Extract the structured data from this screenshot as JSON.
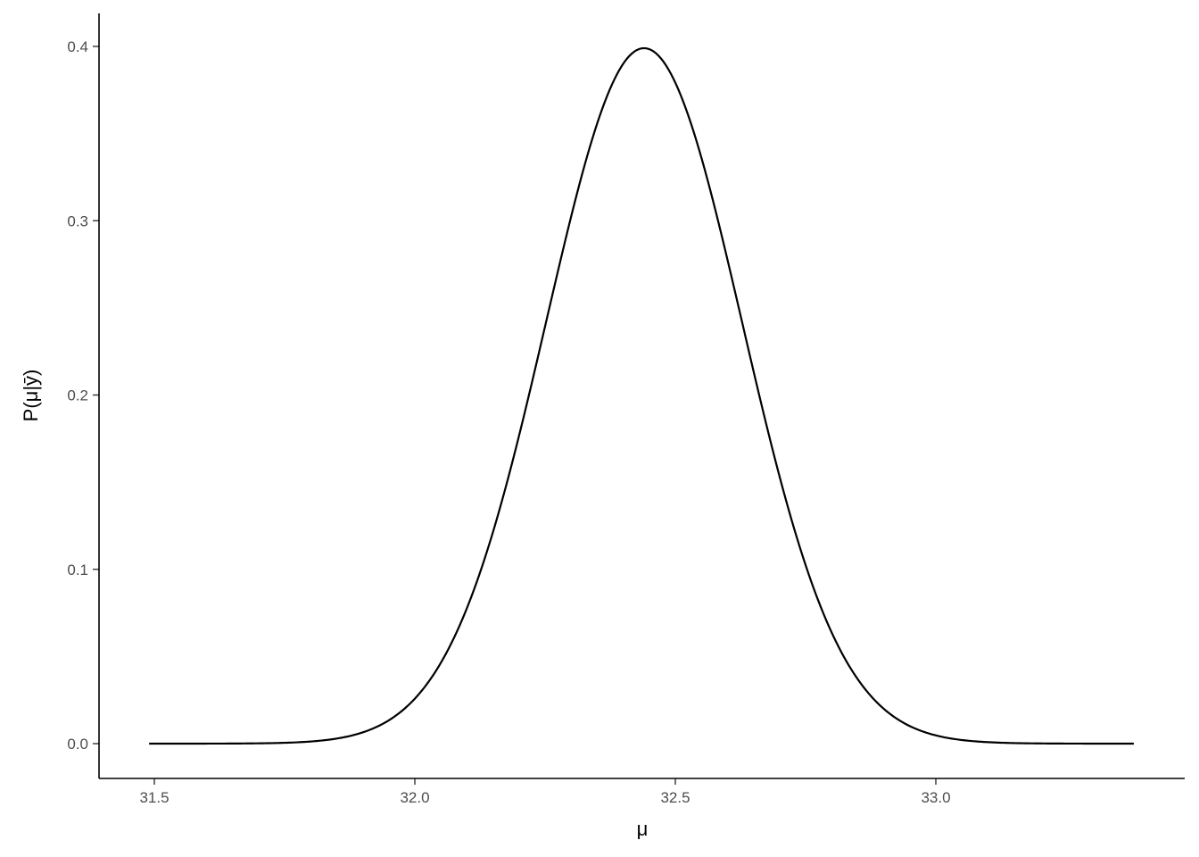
{
  "chart_data": {
    "type": "line",
    "title": "",
    "xlabel": "μ",
    "ylabel": "P(μ|ȳ)",
    "xlim": [
      31.44,
      33.43
    ],
    "ylim": [
      -0.02,
      0.42
    ],
    "x_ticks": [
      31.5,
      32.0,
      32.5,
      33.0
    ],
    "x_tick_labels": [
      "31.5",
      "32.0",
      "32.5",
      "33.0"
    ],
    "y_ticks": [
      0.0,
      0.1,
      0.2,
      0.3,
      0.4
    ],
    "y_tick_labels": [
      "0.0",
      "0.1",
      "0.2",
      "0.3",
      "0.4"
    ],
    "grid": false,
    "series": [
      {
        "curve": "normal-shaped",
        "mean": 32.44,
        "sd": 0.188,
        "peak": 0.399,
        "x_range": [
          31.49,
          33.38
        ],
        "color": "#000000"
      }
    ]
  }
}
